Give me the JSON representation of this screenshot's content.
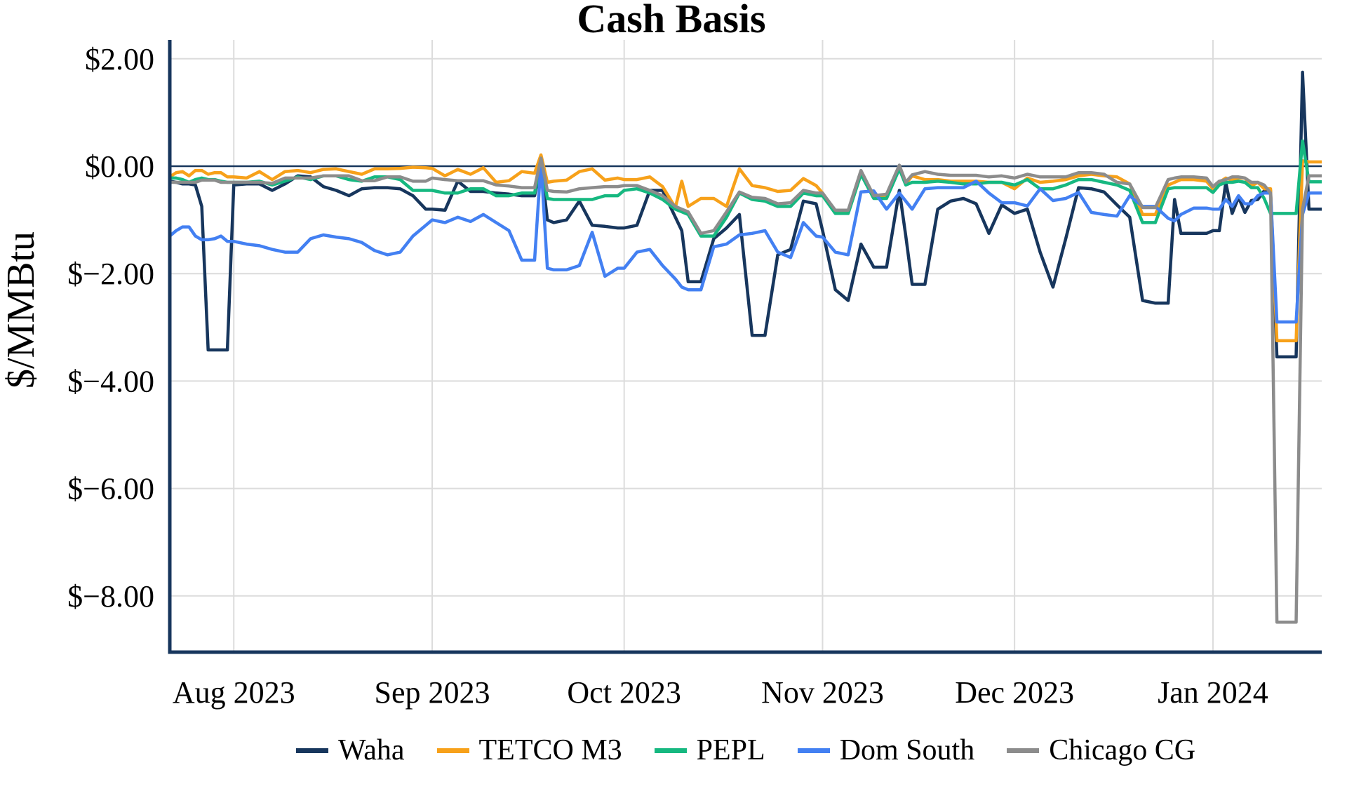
{
  "title": "Cash Basis",
  "chart_data": {
    "type": "line",
    "title": "Cash Basis",
    "xlabel": "",
    "ylabel": "$/MMBtu",
    "x_unit": "days since 2023-07-22 (daily cash basis prices)",
    "x_start_date": "2023-07-22",
    "xlim": [
      0,
      180
    ],
    "ylim": [
      -9.05,
      2.35
    ],
    "grid": true,
    "zero_line": true,
    "legend_position": "bottom",
    "axis_color": "#17365D",
    "grid_color": "#DCDCDC",
    "x_ticks": [
      {
        "day": 10,
        "label": "Aug 2023"
      },
      {
        "day": 41,
        "label": "Sep 2023"
      },
      {
        "day": 71,
        "label": "Oct 2023"
      },
      {
        "day": 102,
        "label": "Nov 2023"
      },
      {
        "day": 132,
        "label": "Dec 2023"
      },
      {
        "day": 163,
        "label": "Jan 2024"
      }
    ],
    "y_ticks": [
      {
        "value": 2,
        "label": "$2.00"
      },
      {
        "value": 0,
        "label": "$0.00"
      },
      {
        "value": -2,
        "label": "$−2.00"
      },
      {
        "value": -4,
        "label": "$−4.00"
      },
      {
        "value": -6,
        "label": "$−6.00"
      },
      {
        "value": -8,
        "label": "$−8.00"
      }
    ],
    "x": [
      0,
      1,
      2,
      3,
      4,
      5,
      6,
      7,
      8,
      9,
      10,
      12,
      14,
      16,
      18,
      20,
      22,
      24,
      26,
      28,
      30,
      32,
      34,
      36,
      38,
      40,
      41,
      43,
      45,
      47,
      49,
      51,
      53,
      55,
      57,
      58,
      59,
      60,
      62,
      64,
      66,
      68,
      70,
      71,
      73,
      75,
      77,
      79,
      80,
      81,
      83,
      85,
      87,
      89,
      91,
      93,
      95,
      97,
      99,
      101,
      102,
      104,
      106,
      108,
      110,
      112,
      114,
      115,
      116,
      118,
      120,
      122,
      124,
      126,
      128,
      130,
      132,
      134,
      136,
      138,
      140,
      142,
      144,
      146,
      148,
      150,
      152,
      154,
      156,
      157,
      158,
      160,
      162,
      163,
      164,
      165,
      166,
      167,
      168,
      169,
      170,
      171,
      172,
      173,
      174,
      175,
      176,
      177,
      178,
      179,
      180
    ],
    "series": [
      {
        "name": "Waha",
        "color": "#17365D",
        "values": [
          -0.28,
          -0.3,
          -0.33,
          -0.33,
          -0.35,
          -0.75,
          -3.42,
          -3.42,
          -3.42,
          -3.42,
          -0.35,
          -0.33,
          -0.33,
          -0.45,
          -0.33,
          -0.18,
          -0.2,
          -0.38,
          -0.45,
          -0.55,
          -0.42,
          -0.4,
          -0.4,
          -0.42,
          -0.55,
          -0.8,
          -0.8,
          -0.82,
          -0.28,
          -0.47,
          -0.47,
          -0.5,
          -0.52,
          -0.55,
          -0.55,
          0.05,
          -1.0,
          -1.05,
          -1.0,
          -0.65,
          -1.1,
          -1.12,
          -1.15,
          -1.15,
          -1.1,
          -0.45,
          -0.45,
          -0.95,
          -1.2,
          -2.15,
          -2.15,
          -1.35,
          -1.15,
          -0.9,
          -3.15,
          -3.15,
          -1.65,
          -1.55,
          -0.65,
          -0.7,
          -1.2,
          -2.3,
          -2.5,
          -1.45,
          -1.88,
          -1.88,
          -0.45,
          -1.3,
          -2.2,
          -2.2,
          -0.8,
          -0.65,
          -0.6,
          -0.7,
          -1.25,
          -0.72,
          -0.88,
          -0.8,
          -1.6,
          -2.25,
          -1.35,
          -0.4,
          -0.42,
          -0.48,
          -0.72,
          -0.95,
          -2.5,
          -2.55,
          -2.55,
          -0.62,
          -1.25,
          -1.25,
          -1.25,
          -1.2,
          -1.2,
          -0.3,
          -0.88,
          -0.58,
          -0.86,
          -0.64,
          -0.62,
          -0.46,
          -0.45,
          -3.55,
          -3.55,
          -3.55,
          -3.55,
          1.75,
          -0.8,
          -0.8,
          -0.8
        ]
      },
      {
        "name": "TETCO M3",
        "color": "#F7A11A",
        "values": [
          -0.2,
          -0.12,
          -0.1,
          -0.18,
          -0.08,
          -0.08,
          -0.15,
          -0.12,
          -0.12,
          -0.2,
          -0.2,
          -0.22,
          -0.1,
          -0.25,
          -0.1,
          -0.08,
          -0.12,
          -0.06,
          -0.05,
          -0.1,
          -0.15,
          -0.05,
          -0.05,
          -0.04,
          -0.02,
          -0.03,
          -0.04,
          -0.18,
          -0.06,
          -0.15,
          -0.03,
          -0.3,
          -0.27,
          -0.1,
          -0.13,
          0.21,
          -0.3,
          -0.28,
          -0.26,
          -0.1,
          -0.05,
          -0.26,
          -0.22,
          -0.25,
          -0.25,
          -0.2,
          -0.38,
          -0.77,
          -0.28,
          -0.75,
          -0.6,
          -0.6,
          -0.75,
          -0.05,
          -0.36,
          -0.4,
          -0.47,
          -0.45,
          -0.23,
          -0.36,
          -0.5,
          -0.85,
          -0.85,
          -0.1,
          -0.55,
          -0.55,
          -0.02,
          -0.33,
          -0.18,
          -0.25,
          -0.25,
          -0.28,
          -0.28,
          -0.28,
          -0.3,
          -0.3,
          -0.42,
          -0.22,
          -0.3,
          -0.28,
          -0.25,
          -0.18,
          -0.15,
          -0.18,
          -0.2,
          -0.33,
          -0.9,
          -0.9,
          -0.35,
          -0.3,
          -0.25,
          -0.25,
          -0.28,
          -0.42,
          -0.3,
          -0.22,
          -0.26,
          -0.22,
          -0.22,
          -0.37,
          -0.3,
          -0.42,
          -0.42,
          -3.25,
          -3.25,
          -3.25,
          -3.25,
          0.1,
          0.08,
          0.08,
          0.08
        ]
      },
      {
        "name": "PEPL",
        "color": "#16B880",
        "values": [
          -0.22,
          -0.22,
          -0.25,
          -0.3,
          -0.25,
          -0.22,
          -0.25,
          -0.25,
          -0.28,
          -0.3,
          -0.3,
          -0.3,
          -0.28,
          -0.35,
          -0.28,
          -0.2,
          -0.25,
          -0.18,
          -0.18,
          -0.25,
          -0.28,
          -0.2,
          -0.2,
          -0.25,
          -0.45,
          -0.45,
          -0.45,
          -0.5,
          -0.5,
          -0.42,
          -0.42,
          -0.55,
          -0.55,
          -0.5,
          -0.5,
          0.12,
          -0.6,
          -0.62,
          -0.62,
          -0.62,
          -0.62,
          -0.55,
          -0.55,
          -0.45,
          -0.42,
          -0.5,
          -0.62,
          -0.8,
          -0.85,
          -0.9,
          -1.3,
          -1.3,
          -0.95,
          -0.5,
          -0.62,
          -0.65,
          -0.75,
          -0.75,
          -0.5,
          -0.55,
          -0.55,
          -0.88,
          -0.88,
          -0.15,
          -0.6,
          -0.6,
          -0.05,
          -0.35,
          -0.3,
          -0.3,
          -0.28,
          -0.3,
          -0.33,
          -0.33,
          -0.3,
          -0.3,
          -0.35,
          -0.25,
          -0.42,
          -0.42,
          -0.35,
          -0.25,
          -0.25,
          -0.3,
          -0.35,
          -0.45,
          -1.05,
          -1.05,
          -0.42,
          -0.4,
          -0.4,
          -0.4,
          -0.4,
          -0.49,
          -0.35,
          -0.3,
          -0.3,
          -0.28,
          -0.3,
          -0.4,
          -0.4,
          -0.6,
          -0.88,
          -0.88,
          -0.88,
          -0.88,
          -0.88,
          0.47,
          -0.29,
          -0.29,
          -0.29
        ]
      },
      {
        "name": "Dom South",
        "color": "#4380F2",
        "values": [
          -1.3,
          -1.2,
          -1.13,
          -1.13,
          -1.3,
          -1.37,
          -1.37,
          -1.35,
          -1.3,
          -1.4,
          -1.4,
          -1.45,
          -1.48,
          -1.55,
          -1.6,
          -1.6,
          -1.35,
          -1.28,
          -1.32,
          -1.35,
          -1.42,
          -1.57,
          -1.65,
          -1.6,
          -1.3,
          -1.1,
          -1.0,
          -1.05,
          -0.95,
          -1.03,
          -0.9,
          -1.05,
          -1.2,
          -1.75,
          -1.75,
          0.07,
          -1.9,
          -1.93,
          -1.93,
          -1.85,
          -1.23,
          -2.05,
          -1.9,
          -1.9,
          -1.6,
          -1.55,
          -1.85,
          -2.1,
          -2.25,
          -2.3,
          -2.3,
          -1.5,
          -1.45,
          -1.28,
          -1.25,
          -1.2,
          -1.6,
          -1.7,
          -1.05,
          -1.3,
          -1.32,
          -1.6,
          -1.65,
          -0.48,
          -0.46,
          -0.8,
          -0.5,
          -0.65,
          -0.8,
          -0.42,
          -0.4,
          -0.4,
          -0.4,
          -0.28,
          -0.5,
          -0.68,
          -0.68,
          -0.74,
          -0.42,
          -0.64,
          -0.6,
          -0.49,
          -0.86,
          -0.9,
          -0.93,
          -0.55,
          -0.75,
          -0.75,
          -0.97,
          -1.02,
          -0.9,
          -0.78,
          -0.78,
          -0.8,
          -0.8,
          -0.62,
          -0.75,
          -0.55,
          -0.7,
          -0.7,
          -0.55,
          -0.5,
          -0.5,
          -2.9,
          -2.9,
          -2.9,
          -2.9,
          -0.9,
          -0.5,
          -0.5,
          -0.5
        ]
      },
      {
        "name": "Chicago CG",
        "color": "#8C8C8C",
        "values": [
          -0.3,
          -0.3,
          -0.3,
          -0.3,
          -0.3,
          -0.26,
          -0.26,
          -0.26,
          -0.3,
          -0.3,
          -0.3,
          -0.3,
          -0.3,
          -0.32,
          -0.22,
          -0.22,
          -0.22,
          -0.18,
          -0.18,
          -0.18,
          -0.27,
          -0.27,
          -0.2,
          -0.2,
          -0.28,
          -0.28,
          -0.22,
          -0.25,
          -0.27,
          -0.27,
          -0.27,
          -0.35,
          -0.37,
          -0.4,
          -0.4,
          0.15,
          -0.45,
          -0.47,
          -0.48,
          -0.42,
          -0.4,
          -0.38,
          -0.38,
          -0.36,
          -0.36,
          -0.45,
          -0.55,
          -0.75,
          -0.8,
          -0.85,
          -1.25,
          -1.2,
          -0.85,
          -0.48,
          -0.58,
          -0.6,
          -0.7,
          -0.68,
          -0.45,
          -0.5,
          -0.5,
          -0.82,
          -0.82,
          -0.08,
          -0.55,
          -0.52,
          0.02,
          -0.3,
          -0.16,
          -0.1,
          -0.15,
          -0.17,
          -0.17,
          -0.17,
          -0.2,
          -0.18,
          -0.22,
          -0.15,
          -0.2,
          -0.2,
          -0.2,
          -0.12,
          -0.12,
          -0.15,
          -0.3,
          -0.33,
          -0.77,
          -0.77,
          -0.25,
          -0.22,
          -0.2,
          -0.2,
          -0.22,
          -0.38,
          -0.28,
          -0.25,
          -0.2,
          -0.2,
          -0.22,
          -0.3,
          -0.3,
          -0.35,
          -0.5,
          -8.49,
          -8.49,
          -8.49,
          -8.49,
          -0.8,
          -0.18,
          -0.18,
          -0.18
        ]
      }
    ]
  },
  "legend": {
    "items": [
      "Waha",
      "TETCO M3",
      "PEPL",
      "Dom South",
      "Chicago CG"
    ]
  }
}
